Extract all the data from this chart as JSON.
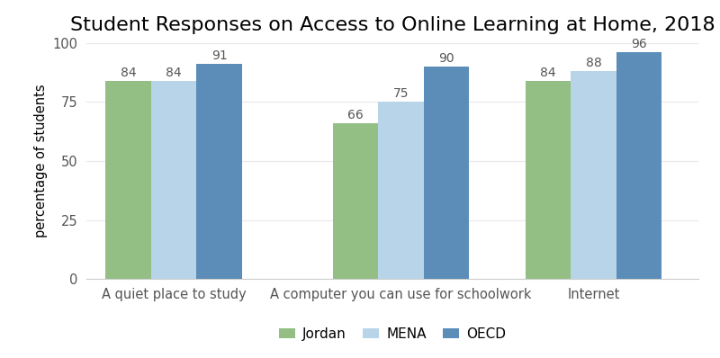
{
  "title": "Student Responses on Access to Online Learning at Home, 2018",
  "ylabel": "percentage of students",
  "categories": [
    "A quiet place to study",
    "A computer you can use for schoolwork",
    "Internet"
  ],
  "series": {
    "Jordan": [
      84,
      66,
      84
    ],
    "MENA": [
      84,
      75,
      88
    ],
    "OECD": [
      91,
      90,
      96
    ]
  },
  "colors": {
    "Jordan": "#93bf85",
    "MENA": "#b8d4e8",
    "OECD": "#5b8db8"
  },
  "ylim": [
    0,
    100
  ],
  "yticks": [
    0,
    25,
    50,
    75,
    100
  ],
  "bar_width": 0.26,
  "x_positions": [
    0.4,
    1.7,
    2.8
  ],
  "title_fontsize": 16,
  "label_fontsize": 10.5,
  "tick_fontsize": 10.5,
  "legend_fontsize": 11,
  "value_fontsize": 10,
  "background_color": "#ffffff",
  "grid_color": "#e8e8e8",
  "legend_labels": [
    "Jordan",
    "MENA",
    "OECD"
  ]
}
